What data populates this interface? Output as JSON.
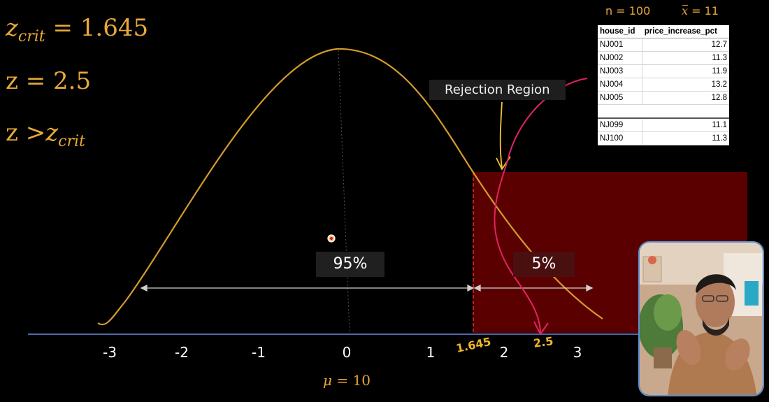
{
  "formulas": {
    "z_crit_symbol": "z",
    "z_crit_sub": "crit",
    "z_crit_value": "= 1.645",
    "z_symbol": "z",
    "z_value": "= 2.5",
    "compare_left": "z",
    "compare_op": ">",
    "compare_right": "z",
    "compare_sub": "crit"
  },
  "stats": {
    "n_label": "n = 100",
    "mean_symbol": "x",
    "mean_value": "= 11"
  },
  "table": {
    "headers": [
      "house_id",
      "price_increase_pct"
    ],
    "rows_top": [
      [
        "NJ001",
        "12.7"
      ],
      [
        "NJ002",
        "11.3"
      ],
      [
        "NJ003",
        "11.9"
      ],
      [
        "NJ004",
        "13.2"
      ],
      [
        "NJ005",
        "12.8"
      ]
    ],
    "rows_bottom": [
      [
        "NJ099",
        "11.1"
      ],
      [
        "NJ100",
        "11.3"
      ]
    ]
  },
  "diagram": {
    "region_95_label": "95%",
    "region_5_label": "5%",
    "rejection_label": "Rejection Region",
    "x_ticks": [
      "-3",
      "-2",
      "-1",
      "0",
      "1",
      "2",
      "3"
    ],
    "z_crit_marker": "1.645",
    "z_marker": "2.5",
    "mu_label": "μ = 10",
    "mu_symbol": "μ",
    "mu_value": "= 10"
  },
  "colors": {
    "curve": "#d49b2a",
    "accent_text": "#e8a93a",
    "rejection_fill": "#5a0000",
    "crit_line": "#e03030",
    "pen_stroke": "#e0245e",
    "axis": "#4a6aa8"
  },
  "icons": [
    "mean-dot-icon",
    "presenter-webcam"
  ]
}
